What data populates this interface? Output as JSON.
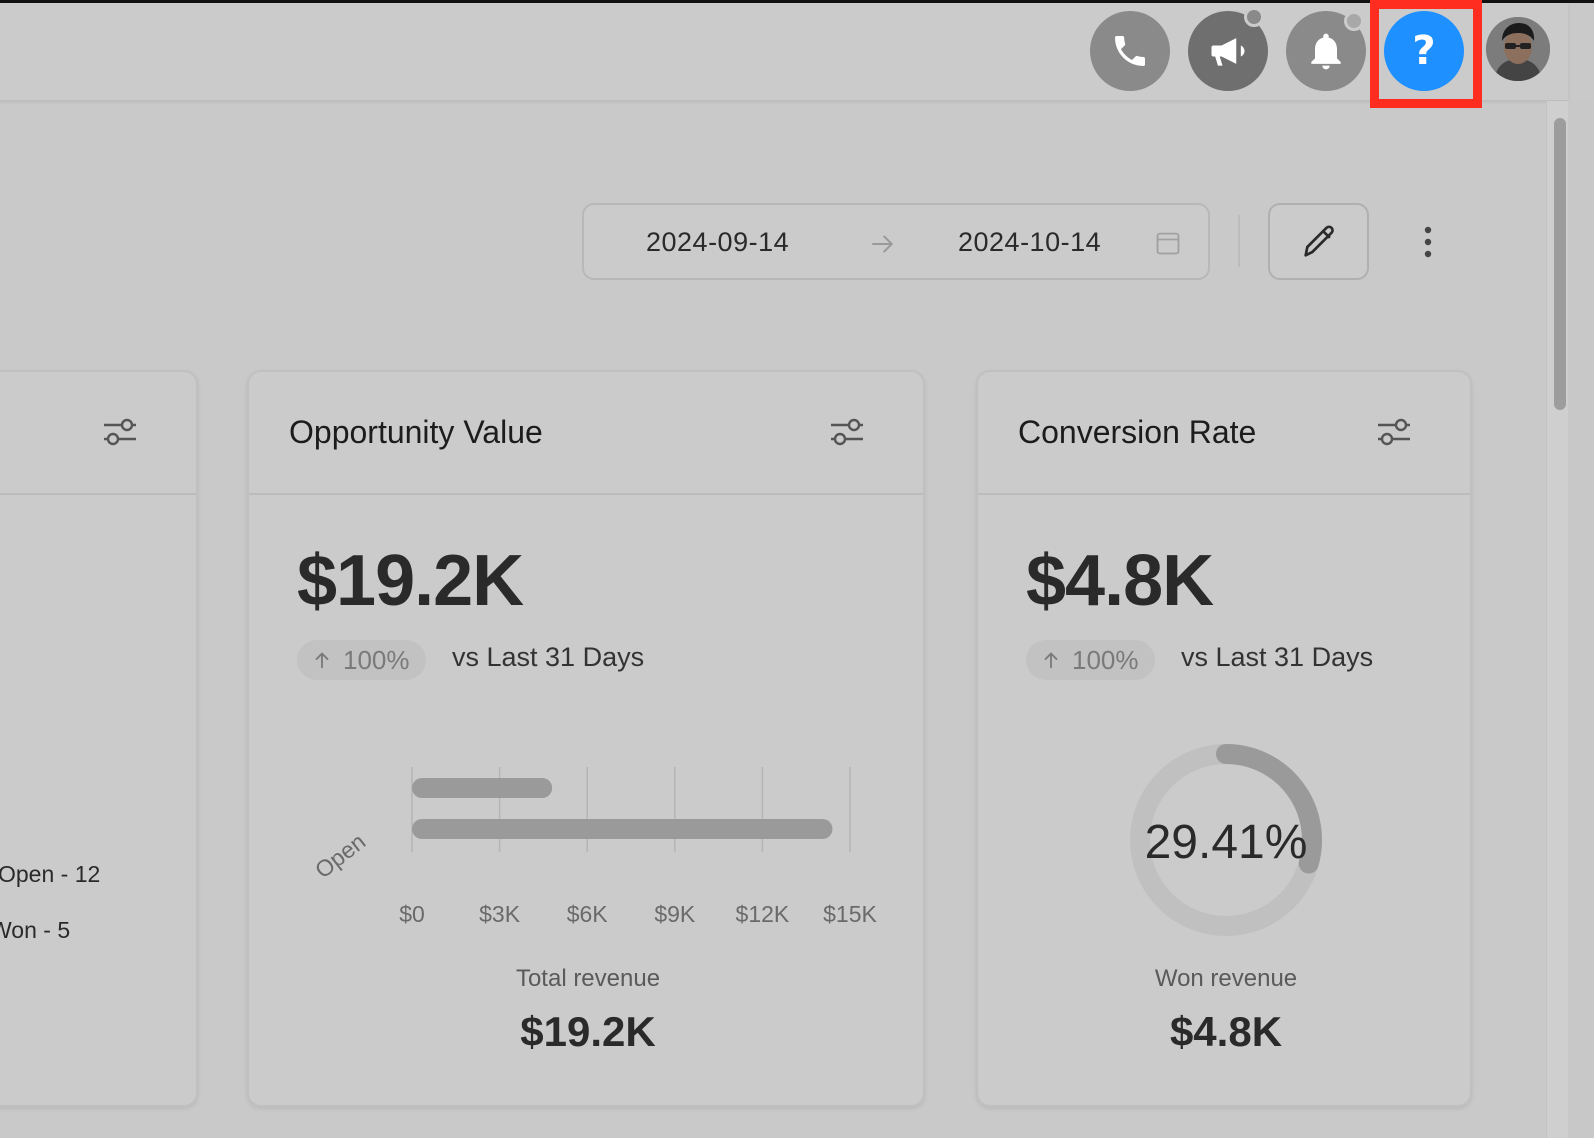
{
  "header": {
    "phone_icon": "phone-icon",
    "announce_icon": "megaphone-icon",
    "bell_icon": "bell-icon",
    "help_icon": "question-mark-icon",
    "help_label": "?",
    "colors": {
      "help_button": "#1e90ff",
      "highlight": "#ff2d20"
    }
  },
  "toolbar": {
    "date_start": "2024-09-14",
    "date_end": "2024-10-14"
  },
  "left_card": {
    "legend": [
      "Open - 12",
      "Won - 5"
    ]
  },
  "opportunity_card": {
    "title": "Opportunity Value",
    "value": "$19.2K",
    "change": "100%",
    "compare": "vs Last 31 Days",
    "footer_label": "Total revenue",
    "footer_value": "$19.2K"
  },
  "conversion_card": {
    "title": "Conversion Rate",
    "value": "$4.8K",
    "change": "100%",
    "compare": "vs Last 31 Days",
    "gauge_label": "29.41%",
    "footer_label": "Won revenue",
    "footer_value": "$4.8K"
  },
  "chart_data": [
    {
      "type": "bar",
      "orientation": "horizontal",
      "categories": [
        "Open"
      ],
      "series": [
        {
          "values": [
            4800
          ]
        },
        {
          "values": [
            14400
          ]
        }
      ],
      "xlim": [
        0,
        15000
      ],
      "xticks": [
        "$0",
        "$3K",
        "$6K",
        "$9K",
        "$12K",
        "$15K"
      ],
      "grid": true
    },
    {
      "type": "pie",
      "style": "donut",
      "values": [
        29.41,
        70.59
      ],
      "center_label": "29.41%"
    }
  ]
}
